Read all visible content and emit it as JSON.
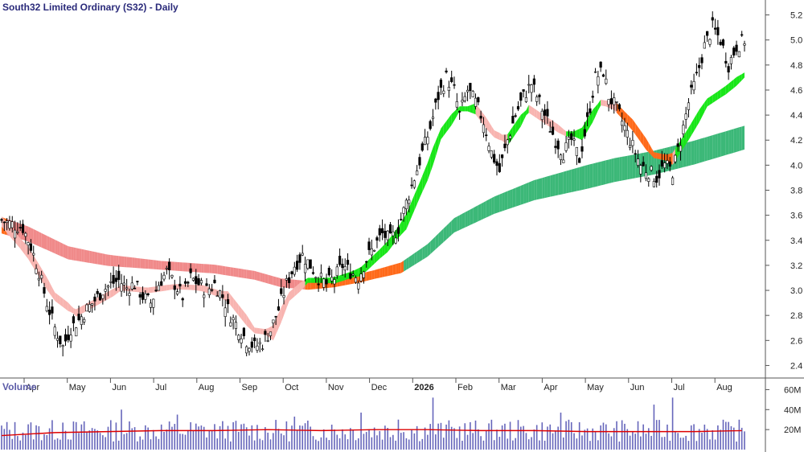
{
  "chart_data": {
    "type": "candlestick",
    "title": "South32 Limited Ordinary (S32) - Daily",
    "price_axis": {
      "min": 2.3,
      "max": 5.3,
      "ticks": [
        "5.2",
        "5.0",
        "4.8",
        "4.6",
        "4.4",
        "4.2",
        "4.0",
        "3.8",
        "3.6",
        "3.4",
        "3.2",
        "3.0",
        "2.8",
        "2.6",
        "2.4"
      ]
    },
    "x_labels": [
      "Apr",
      "May",
      "Jun",
      "Jul",
      "Aug",
      "Sep",
      "Oct",
      "Nov",
      "Dec",
      "2026",
      "Feb",
      "Mar",
      "Apr",
      "May",
      "Jun",
      "Jul",
      "Aug"
    ],
    "x_label_bold": [
      false,
      false,
      false,
      false,
      false,
      false,
      false,
      false,
      false,
      true,
      false,
      false,
      false,
      false,
      false,
      false,
      false
    ],
    "price_path": [
      [
        0,
        3.56
      ],
      [
        5,
        3.52
      ],
      [
        8,
        3.5
      ],
      [
        11,
        3.35
      ],
      [
        14,
        3.15
      ],
      [
        17,
        2.9
      ],
      [
        20,
        2.7
      ],
      [
        23,
        2.55
      ],
      [
        26,
        2.7
      ],
      [
        29,
        2.76
      ],
      [
        32,
        2.85
      ],
      [
        35,
        2.92
      ],
      [
        38,
        3.0
      ],
      [
        41,
        3.05
      ],
      [
        44,
        3.08
      ],
      [
        47,
        3.02
      ],
      [
        50,
        3.05
      ],
      [
        53,
        2.95
      ],
      [
        56,
        2.9
      ],
      [
        59,
        3.05
      ],
      [
        62,
        3.15
      ],
      [
        65,
        3.05
      ],
      [
        68,
        2.95
      ],
      [
        71,
        3.1
      ],
      [
        74,
        3.05
      ],
      [
        77,
        3.0
      ],
      [
        80,
        3.05
      ],
      [
        83,
        2.95
      ],
      [
        86,
        2.8
      ],
      [
        89,
        2.7
      ],
      [
        92,
        2.6
      ],
      [
        95,
        2.55
      ],
      [
        98,
        2.58
      ],
      [
        101,
        2.68
      ],
      [
        104,
        2.85
      ],
      [
        107,
        3.05
      ],
      [
        110,
        3.2
      ],
      [
        113,
        3.28
      ],
      [
        116,
        3.2
      ],
      [
        119,
        3.1
      ],
      [
        122,
        3.05
      ],
      [
        125,
        3.1
      ],
      [
        128,
        3.2
      ],
      [
        131,
        3.15
      ],
      [
        134,
        3.1
      ],
      [
        137,
        3.25
      ],
      [
        140,
        3.35
      ],
      [
        143,
        3.45
      ],
      [
        146,
        3.4
      ],
      [
        149,
        3.5
      ],
      [
        152,
        3.7
      ],
      [
        155,
        3.9
      ],
      [
        158,
        4.1
      ],
      [
        161,
        4.3
      ],
      [
        164,
        4.55
      ],
      [
        167,
        4.7
      ],
      [
        170,
        4.6
      ],
      [
        172,
        4.4
      ],
      [
        175,
        4.6
      ],
      [
        178,
        4.5
      ],
      [
        181,
        4.35
      ],
      [
        184,
        4.1
      ],
      [
        187,
        3.95
      ],
      [
        190,
        4.2
      ],
      [
        193,
        4.4
      ],
      [
        196,
        4.55
      ],
      [
        199,
        4.65
      ],
      [
        202,
        4.5
      ],
      [
        205,
        4.35
      ],
      [
        208,
        4.2
      ],
      [
        211,
        4.1
      ],
      [
        214,
        4.2
      ],
      [
        217,
        4.05
      ],
      [
        220,
        4.35
      ],
      [
        223,
        4.7
      ],
      [
        226,
        4.75
      ],
      [
        228,
        4.55
      ],
      [
        231,
        4.45
      ],
      [
        234,
        4.3
      ],
      [
        237,
        4.15
      ],
      [
        240,
        4.0
      ],
      [
        243,
        3.95
      ],
      [
        246,
        3.9
      ],
      [
        249,
        4.0
      ],
      [
        252,
        3.95
      ],
      [
        255,
        4.2
      ],
      [
        258,
        4.5
      ],
      [
        261,
        4.7
      ],
      [
        264,
        4.95
      ],
      [
        267,
        5.1
      ],
      [
        270,
        5.0
      ],
      [
        273,
        4.8
      ],
      [
        276,
        4.95
      ],
      [
        279,
        5.0
      ]
    ],
    "guppy_short": [
      [
        0,
        3.55
      ],
      [
        10,
        3.3
      ],
      [
        20,
        2.95
      ],
      [
        28,
        2.82
      ],
      [
        35,
        2.9
      ],
      [
        45,
        3.02
      ],
      [
        55,
        3.0
      ],
      [
        65,
        3.03
      ],
      [
        75,
        3.02
      ],
      [
        85,
        2.95
      ],
      [
        95,
        2.68
      ],
      [
        102,
        2.66
      ],
      [
        108,
        2.95
      ],
      [
        115,
        3.08
      ],
      [
        125,
        3.08
      ],
      [
        135,
        3.15
      ],
      [
        145,
        3.35
      ],
      [
        152,
        3.55
      ],
      [
        160,
        3.95
      ],
      [
        165,
        4.25
      ],
      [
        172,
        4.45
      ],
      [
        178,
        4.45
      ],
      [
        185,
        4.25
      ],
      [
        190,
        4.2
      ],
      [
        198,
        4.45
      ],
      [
        205,
        4.35
      ],
      [
        212,
        4.25
      ],
      [
        218,
        4.25
      ],
      [
        225,
        4.5
      ],
      [
        230,
        4.48
      ],
      [
        237,
        4.32
      ],
      [
        245,
        4.08
      ],
      [
        252,
        4.05
      ],
      [
        258,
        4.25
      ],
      [
        265,
        4.5
      ],
      [
        272,
        4.6
      ],
      [
        279,
        4.72
      ]
    ],
    "guppy_long": [
      [
        0,
        3.52
      ],
      [
        10,
        3.45
      ],
      [
        25,
        3.3
      ],
      [
        40,
        3.24
      ],
      [
        60,
        3.2
      ],
      [
        80,
        3.17
      ],
      [
        95,
        3.12
      ],
      [
        105,
        3.06
      ],
      [
        115,
        3.04
      ],
      [
        125,
        3.06
      ],
      [
        135,
        3.1
      ],
      [
        150,
        3.18
      ],
      [
        160,
        3.32
      ],
      [
        170,
        3.52
      ],
      [
        185,
        3.68
      ],
      [
        200,
        3.8
      ],
      [
        215,
        3.88
      ],
      [
        230,
        3.96
      ],
      [
        245,
        4.02
      ],
      [
        260,
        4.1
      ],
      [
        279,
        4.22
      ]
    ],
    "volume_axis": {
      "min": 0,
      "max": 70000000,
      "ticks": [
        "60M",
        "40M",
        "20M"
      ]
    },
    "volume_ma": [
      [
        0,
        14
      ],
      [
        20,
        17
      ],
      [
        40,
        18
      ],
      [
        60,
        19
      ],
      [
        80,
        19
      ],
      [
        100,
        20
      ],
      [
        120,
        19
      ],
      [
        140,
        20
      ],
      [
        160,
        20
      ],
      [
        180,
        19
      ],
      [
        200,
        19
      ],
      [
        220,
        18
      ],
      [
        240,
        18
      ],
      [
        260,
        18
      ],
      [
        279,
        19
      ]
    ],
    "volume_spikes": [
      [
        23,
        27
      ],
      [
        45,
        40
      ],
      [
        66,
        35
      ],
      [
        110,
        33
      ],
      [
        135,
        37
      ],
      [
        149,
        30
      ],
      [
        162,
        52
      ],
      [
        167,
        25
      ],
      [
        210,
        37
      ],
      [
        245,
        45
      ],
      [
        252,
        52
      ],
      [
        264,
        25
      ],
      [
        275,
        22
      ]
    ],
    "legend": "Volume",
    "colors": {
      "candle": "#000000",
      "short_up": "#19e619",
      "short_down": "#f8b4b0",
      "long_up": "#3cb878",
      "long_down": "#f08a8a",
      "cross": "#ff6a1a",
      "volume_bar": "#6666bb",
      "volume_ma": "#dd0000",
      "axis_text": "#222222",
      "title": "#2a2a7a"
    }
  }
}
